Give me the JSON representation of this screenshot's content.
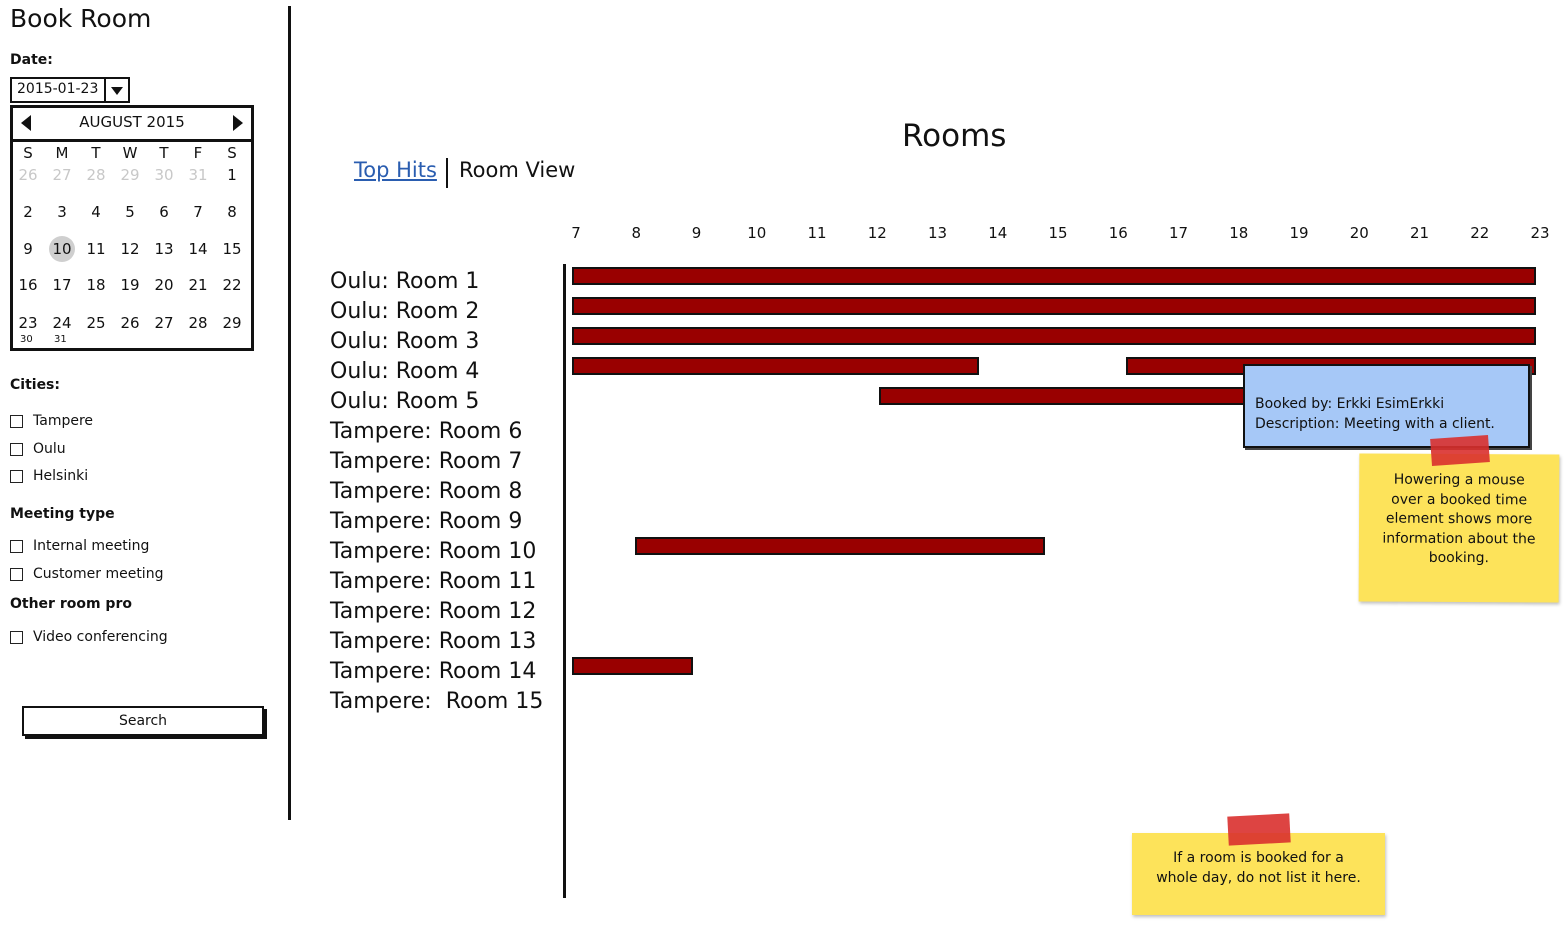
{
  "sidebar": {
    "title": "Book Room",
    "date_label": "Date:",
    "date_value": "2015-01-23",
    "calendar": {
      "month": "AUGUST 2015",
      "weekdays": [
        "S",
        "M",
        "T",
        "W",
        "T",
        "F",
        "S"
      ],
      "rows": [
        [
          "26",
          "27",
          "28",
          "29",
          "30",
          "31",
          "1"
        ],
        [
          "2",
          "3",
          "4",
          "5",
          "6",
          "7",
          "8"
        ],
        [
          "9",
          "10",
          "11",
          "12",
          "13",
          "14",
          "15"
        ],
        [
          "16",
          "17",
          "18",
          "19",
          "20",
          "21",
          "22"
        ],
        [
          "23",
          "24",
          "25",
          "26",
          "27",
          "28",
          "29"
        ]
      ],
      "overflow": [
        "30",
        "31"
      ],
      "selected": "10"
    },
    "cities_label": "Cities:",
    "cities": [
      "Tampere",
      "Oulu",
      "Helsinki"
    ],
    "meeting_type_label": "Meeting type",
    "meeting_types": [
      "Internal meeting",
      "Customer meeting"
    ],
    "other_label": "Other room pro",
    "other_options": [
      "Video conferencing"
    ],
    "search_label": "Search"
  },
  "main": {
    "title": "Rooms",
    "tabs": [
      "Top Hits",
      "Room View"
    ],
    "hours": [
      "7",
      "8",
      "9",
      "10",
      "11",
      "12",
      "13",
      "14",
      "15",
      "16",
      "17",
      "18",
      "19",
      "20",
      "21",
      "22",
      "23"
    ],
    "rooms": [
      "Oulu: Room 1",
      "Oulu: Room 2",
      "Oulu: Room 3",
      "Oulu: Room 4",
      "Oulu: Room 5",
      "Tampere: Room 6",
      "Tampere: Room 7",
      "Tampere: Room 8",
      "Tampere: Room 9",
      "Tampere: Room 10",
      "Tampere: Room 11",
      "Tampere: Room 12",
      "Tampere: Room 13",
      "Tampere: Room 14",
      "Tampere:  Room 15"
    ],
    "bookings": [
      {
        "room": 0,
        "start": 7,
        "end": 23
      },
      {
        "room": 1,
        "start": 7,
        "end": 23
      },
      {
        "room": 2,
        "start": 7,
        "end": 23
      },
      {
        "room": 3,
        "start": 7,
        "end": 13.75
      },
      {
        "room": 3,
        "start": 16.2,
        "end": 23
      },
      {
        "room": 4,
        "start": 12.1,
        "end": 18.3
      },
      {
        "room": 9,
        "start": 8.05,
        "end": 14.85
      },
      {
        "room": 13,
        "start": 7,
        "end": 9
      }
    ],
    "bar_color": "#990000",
    "tooltip": {
      "booked_by": "Booked by: Erkki EsimErkki",
      "description": "Description: Meeting with a client."
    },
    "notes": [
      "Howering a mouse over a booked time element shows more information about the booking.",
      "If a room is booked for a whole day, do not list it here."
    ]
  }
}
